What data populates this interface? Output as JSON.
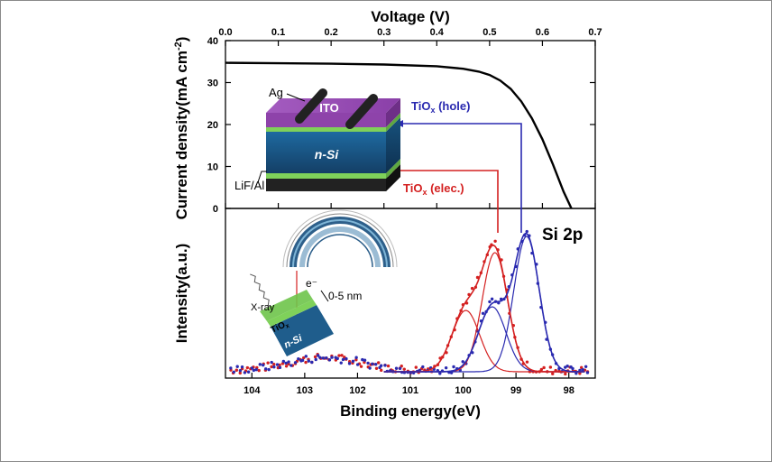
{
  "chart_data": [
    {
      "type": "line",
      "xlabel": "Voltage (V)",
      "ylabel": "Current density(mA cm⁻²)",
      "xlim": [
        0.0,
        0.7
      ],
      "ylim": [
        0,
        40
      ],
      "x_ticks": [
        "0.0",
        "0.1",
        "0.2",
        "0.3",
        "0.4",
        "0.5",
        "0.6",
        "0.7"
      ],
      "y_ticks": [
        "0",
        "10",
        "20",
        "30",
        "40"
      ],
      "series": [
        {
          "color": "#000000",
          "x": [
            0.0,
            0.1,
            0.2,
            0.3,
            0.4,
            0.45,
            0.48,
            0.5,
            0.52,
            0.54,
            0.56,
            0.58,
            0.6,
            0.62,
            0.64,
            0.655
          ],
          "y": [
            34.7,
            34.6,
            34.5,
            34.3,
            33.9,
            33.3,
            32.6,
            31.8,
            30.5,
            28.5,
            25.5,
            21.5,
            16.5,
            10.5,
            4.0,
            0
          ]
        }
      ],
      "annotations": {
        "ag": "Ag",
        "ito": "ITO",
        "nsi": "n-Si",
        "lif": "LiF/Al",
        "tiox_hole": "TiOx (hole)",
        "tiox_elec": "TiOx (elec.)"
      }
    },
    {
      "type": "scatter",
      "title": "Si 2p",
      "xlabel": "Binding energy(eV)",
      "ylabel": "Intensity(a.u.)",
      "xlim": [
        104.5,
        97.5
      ],
      "x_ticks": [
        "104",
        "103",
        "102",
        "101",
        "100",
        "99",
        "98"
      ],
      "series": [
        {
          "color": "#d42020",
          "peaks_eV": [
            99.95,
            99.4
          ]
        },
        {
          "color": "#2a2ab0",
          "peaks_eV": [
            99.45,
            98.8
          ]
        }
      ],
      "inset": {
        "xray": "X-ray",
        "electron": "e⁻",
        "depth": "0-5 nm",
        "tiox": "TiOx",
        "nsi": "n-Si"
      }
    }
  ],
  "colors": {
    "red": "#d42020",
    "blue": "#2a2ab0",
    "ito": "#9a4fb5",
    "nsi": "#1f5d8c",
    "green": "#6ec44a"
  }
}
